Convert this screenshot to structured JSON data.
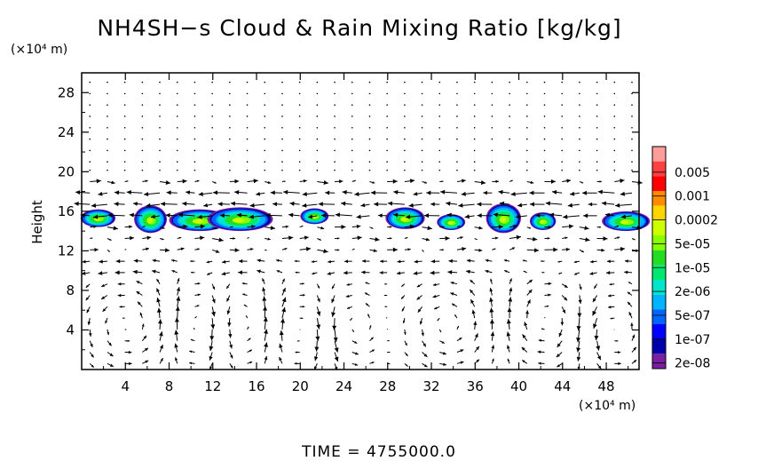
{
  "chart_data": {
    "type": "heatmap",
    "title": "NH4SH−s Cloud & Rain Mixing Ratio [kg/kg]",
    "ylabel": "Height",
    "y_unit": "(×10⁴ m)",
    "x_unit": "(×10⁴ m)",
    "xlim": [
      0,
      51
    ],
    "ylim": [
      0,
      30
    ],
    "x_ticks": [
      "4",
      "8",
      "12",
      "16",
      "20",
      "24",
      "28",
      "32",
      "36",
      "40",
      "44",
      "48"
    ],
    "y_ticks": [
      "4",
      "8",
      "12",
      "16",
      "20",
      "24",
      "28"
    ],
    "time_label": "TIME  =  4755000.0",
    "colorbar": {
      "labels": [
        "0.005",
        "0.001",
        "0.0002",
        "5e-05",
        "1e-05",
        "2e-06",
        "5e-07",
        "1e-07",
        "2e-08"
      ],
      "colors": [
        "#ff9c9c",
        "#ff4040",
        "#ff0000",
        "#ff8c00",
        "#ffd400",
        "#ccff00",
        "#88ff00",
        "#22dd22",
        "#00e870",
        "#00e6c8",
        "#00b4ff",
        "#0064ff",
        "#0000ff",
        "#0000aa",
        "#7a1fa0"
      ]
    },
    "cloud_blobs": [
      {
        "x": 1.5,
        "y": 15.3,
        "rx": 1.6,
        "ry": 0.9
      },
      {
        "x": 6.3,
        "y": 15.2,
        "rx": 1.5,
        "ry": 1.4
      },
      {
        "x": 10.8,
        "y": 15.1,
        "rx": 2.8,
        "ry": 1.1
      },
      {
        "x": 14.5,
        "y": 15.2,
        "rx": 3.0,
        "ry": 1.2
      },
      {
        "x": 21.3,
        "y": 15.5,
        "rx": 1.3,
        "ry": 0.8
      },
      {
        "x": 29.6,
        "y": 15.3,
        "rx": 1.8,
        "ry": 1.1
      },
      {
        "x": 33.8,
        "y": 14.9,
        "rx": 1.3,
        "ry": 0.8
      },
      {
        "x": 38.6,
        "y": 15.3,
        "rx": 1.6,
        "ry": 1.5
      },
      {
        "x": 42.2,
        "y": 15.0,
        "rx": 1.2,
        "ry": 0.9
      },
      {
        "x": 49.8,
        "y": 15.0,
        "rx": 2.2,
        "ry": 1.0
      }
    ],
    "circulation_cells": [
      {
        "x": 4.0,
        "y": 4.5,
        "rx": 4.5,
        "ry": 5.2,
        "dir": 1
      },
      {
        "x": 10.5,
        "y": 4.5,
        "rx": 2.5,
        "ry": 5.0,
        "dir": -1
      },
      {
        "x": 15.5,
        "y": 4.5,
        "rx": 3.5,
        "ry": 5.5,
        "dir": 1
      },
      {
        "x": 19.5,
        "y": 4.0,
        "rx": 4.0,
        "ry": 5.0,
        "dir": -1
      },
      {
        "x": 24.5,
        "y": 4.5,
        "rx": 3.0,
        "ry": 4.5,
        "dir": 1
      },
      {
        "x": 33.5,
        "y": 4.5,
        "rx": 4.5,
        "ry": 5.0,
        "dir": 1
      },
      {
        "x": 42.5,
        "y": 5.0,
        "rx": 4.0,
        "ry": 5.0,
        "dir": -1
      },
      {
        "x": 48.5,
        "y": 4.0,
        "rx": 3.0,
        "ry": 4.5,
        "dir": 1
      }
    ]
  }
}
